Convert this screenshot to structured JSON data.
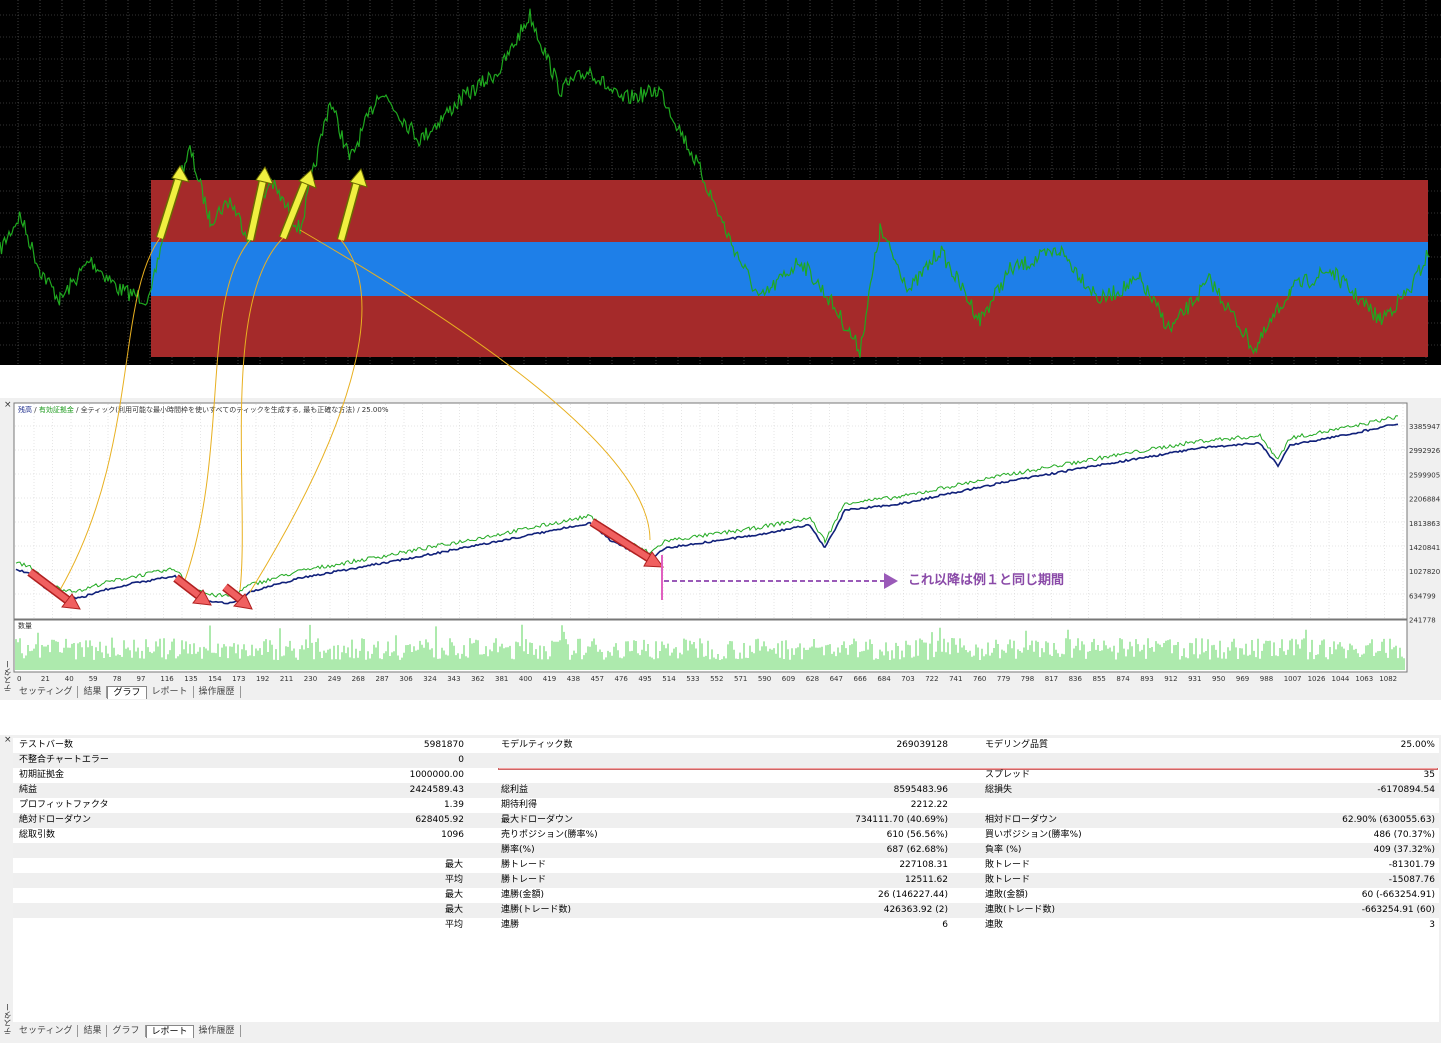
{
  "graph_header": {
    "balance": "残高",
    "equity": "有効証拠金",
    "model": "全ティック(利用可能な最小時間枠を使いすべてのティックを生成する, 最も正確な方法)",
    "quality": "25.00%"
  },
  "annotation": "これ以降は例１と同じ期間",
  "y_ticks": [
    "3385947",
    "2992926",
    "2599905",
    "2206884",
    "1813863",
    "1420841",
    "1027820",
    "634799",
    "241778"
  ],
  "x_ticks": [
    "0",
    "21",
    "40",
    "59",
    "78",
    "97",
    "116",
    "135",
    "154",
    "173",
    "192",
    "211",
    "230",
    "249",
    "268",
    "287",
    "306",
    "324",
    "343",
    "362",
    "381",
    "400",
    "419",
    "438",
    "457",
    "476",
    "495",
    "514",
    "533",
    "552",
    "571",
    "590",
    "609",
    "628",
    "647",
    "666",
    "684",
    "703",
    "722",
    "741",
    "760",
    "779",
    "798",
    "817",
    "836",
    "855",
    "874",
    "893",
    "912",
    "931",
    "950",
    "969",
    "988",
    "1007",
    "1026",
    "1044",
    "1063",
    "1082"
  ],
  "volume_label": "数量",
  "side_label": "テスター",
  "close_label": "×",
  "tabs_graph": [
    {
      "label": "セッティング"
    },
    {
      "label": "結果"
    },
    {
      "label": "グラフ",
      "active": true
    },
    {
      "label": "レポート"
    },
    {
      "label": "操作履歴"
    }
  ],
  "tabs_report": [
    {
      "label": "セッティング"
    },
    {
      "label": "結果"
    },
    {
      "label": "グラフ"
    },
    {
      "label": "レポート",
      "active": true
    },
    {
      "label": "操作履歴"
    }
  ],
  "report": {
    "rows": [
      [
        "テストバー数",
        "",
        "5981870",
        "モデルティック数",
        "",
        "269039128",
        "モデリング品質",
        "",
        "25.00%"
      ],
      [
        "不整合チャートエラー",
        "",
        "0",
        "",
        "",
        "",
        "",
        "",
        ""
      ],
      [
        "初期証拠金",
        "",
        "1000000.00",
        "",
        "",
        "",
        "スプレッド",
        "",
        "35"
      ],
      [
        "純益",
        "",
        "2424589.43",
        "総利益",
        "",
        "8595483.96",
        "総損失",
        "",
        "-6170894.54"
      ],
      [
        "プロフィットファクタ",
        "",
        "1.39",
        "期待利得",
        "",
        "2212.22",
        "",
        "",
        ""
      ],
      [
        "絶対ドローダウン",
        "",
        "628405.92",
        "最大ドローダウン",
        "",
        "734111.70 (40.69%)",
        "相対ドローダウン",
        "",
        "62.90% (630055.63)"
      ],
      [
        "総取引数",
        "",
        "1096",
        "売りポジション(勝率%)",
        "",
        "610 (56.56%)",
        "買いポジション(勝率%)",
        "",
        "486 (70.37%)"
      ],
      [
        "",
        "",
        "",
        "勝率(%)",
        "",
        "687 (62.68%)",
        "負率 (%)",
        "",
        "409 (37.32%)"
      ],
      [
        "",
        "最大",
        "",
        "勝トレード",
        "",
        "227108.31",
        "敗トレード",
        "",
        "-81301.79"
      ],
      [
        "",
        "平均",
        "",
        "勝トレード",
        "",
        "12511.62",
        "敗トレード",
        "",
        "-15087.76"
      ],
      [
        "",
        "最大",
        "",
        "連勝(金額)",
        "",
        "26 (146227.44)",
        "連敗(金額)",
        "",
        "60 (-663254.91)"
      ],
      [
        "",
        "最大",
        "",
        "連勝(トレード数)",
        "",
        "426363.92 (2)",
        "連敗(トレード数)",
        "",
        "-663254.91 (60)"
      ],
      [
        "",
        "平均",
        "",
        "連勝",
        "",
        "6",
        "連敗",
        "",
        "3"
      ]
    ]
  }
}
